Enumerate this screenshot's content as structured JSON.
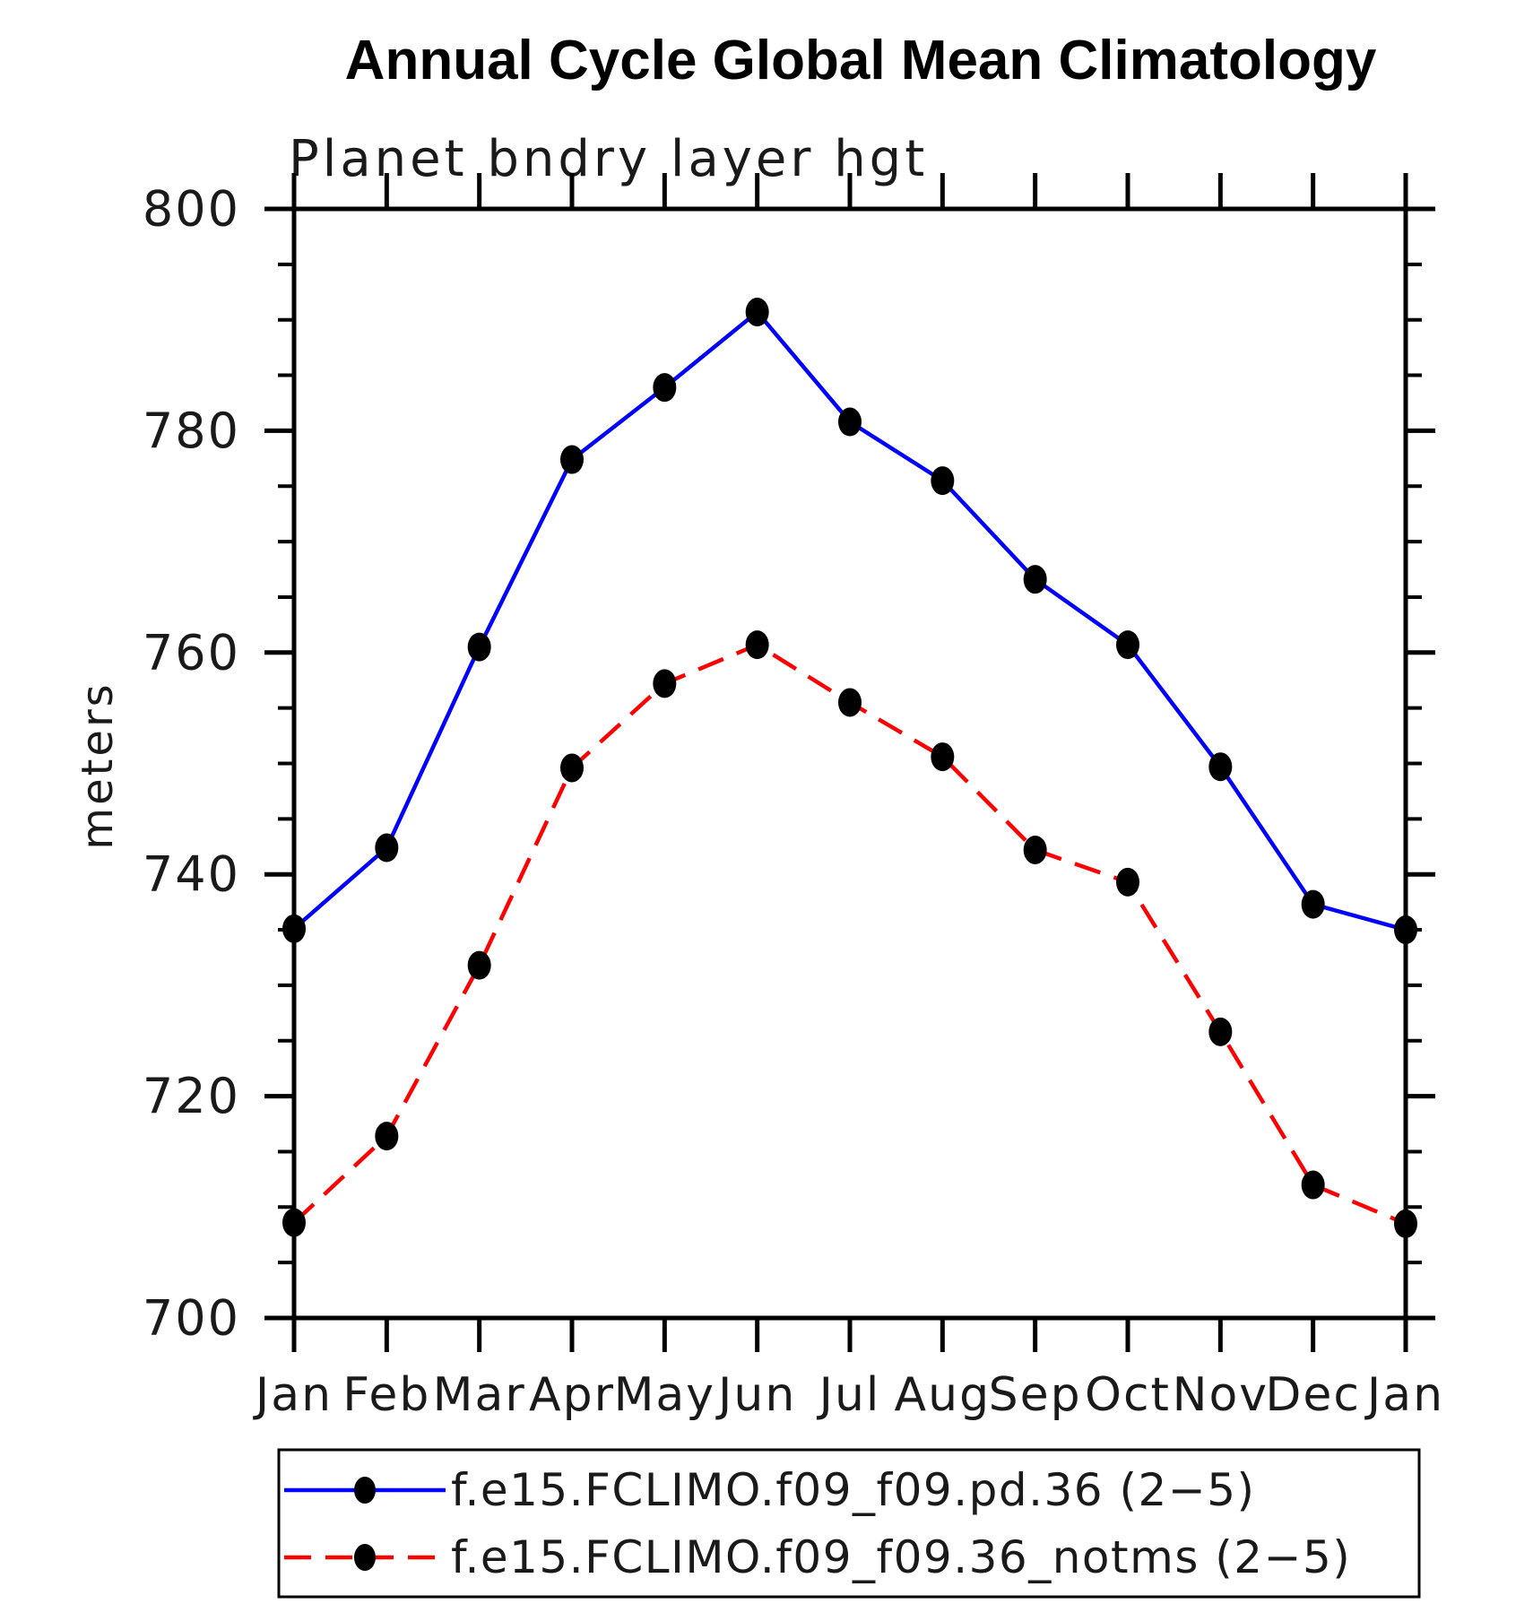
{
  "title": "Annual Cycle Global Mean Climatology",
  "chart_data": {
    "type": "line",
    "title": "Annual Cycle Global Mean Climatology",
    "subtitle": "Planet bndry layer hgt",
    "ylabel": "meters",
    "xlabel": "",
    "categories": [
      "Jan",
      "Feb",
      "Mar",
      "Apr",
      "May",
      "Jun",
      "Jul",
      "Aug",
      "Sep",
      "Oct",
      "Nov",
      "Dec",
      "Jan"
    ],
    "series": [
      {
        "name": "f.e15.FCLIMO.f09_f09.pd.36 (2−5)",
        "color": "#0000ff",
        "line_style": "solid",
        "marker": "black-filled-dot",
        "values": [
          735.1,
          742.4,
          760.5,
          777.4,
          783.9,
          790.7,
          780.8,
          775.5,
          766.6,
          760.7,
          749.7,
          737.3,
          735.0
        ]
      },
      {
        "name": "f.e15.FCLIMO.f09_f09.36_notms (2−5)",
        "color": "#ff0000",
        "line_style": "dashed",
        "marker": "black-filled-dot",
        "values": [
          708.6,
          716.4,
          731.8,
          749.6,
          757.2,
          760.7,
          755.5,
          750.6,
          742.2,
          739.3,
          725.8,
          712.0,
          708.5
        ]
      }
    ],
    "ylim": [
      700,
      800
    ],
    "yticks_major": [
      700,
      720,
      740,
      760,
      780,
      800
    ],
    "ytick_minor_step": 5,
    "grid": false,
    "axis_box": true,
    "legend_position": "bottom",
    "marker_color": "#000000"
  }
}
